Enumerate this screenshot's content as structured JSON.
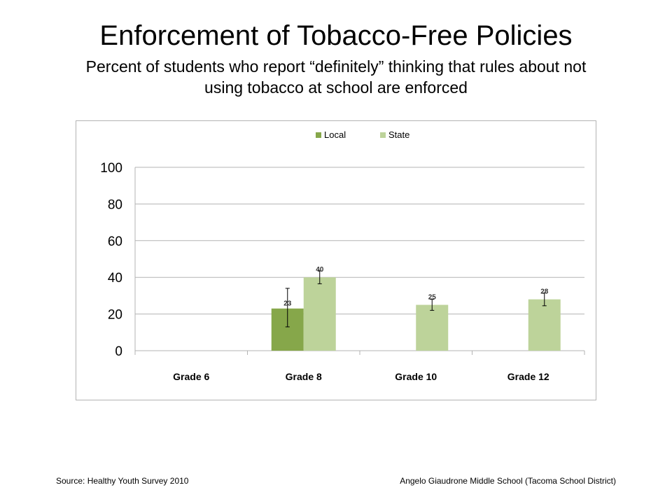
{
  "slide": {
    "title": "Enforcement of Tobacco-Free Policies",
    "subtitle": "Percent of students who report “definitely” thinking that rules about not using tobacco at school are enforced",
    "source": "Source: Healthy Youth Survey 2010",
    "school": "Angelo Giaudrone Middle School (Tacoma School District)"
  },
  "chart_data": {
    "type": "bar",
    "categories": [
      "Grade 6",
      "Grade 8",
      "Grade 10",
      "Grade 12"
    ],
    "series": [
      {
        "name": "Local",
        "color": "#86a74a",
        "values": [
          null,
          23,
          null,
          null
        ],
        "error_low": [
          null,
          13,
          null,
          null
        ],
        "error_high": [
          null,
          34,
          null,
          null
        ],
        "labels": [
          "",
          "23",
          "",
          ""
        ]
      },
      {
        "name": "State",
        "color": "#bdd39a",
        "values": [
          null,
          40,
          25,
          28
        ],
        "error_low": [
          null,
          36.5,
          22,
          24.5
        ],
        "error_high": [
          null,
          43.5,
          28,
          31.5
        ],
        "labels": [
          "",
          "40",
          "25",
          "28"
        ]
      }
    ],
    "ylim": [
      0,
      100
    ],
    "yticks": [
      "0",
      "20",
      "40",
      "60",
      "80",
      "100"
    ],
    "grid": true,
    "legend_position": "top-center",
    "gridline_color": "#b3b3b3"
  }
}
